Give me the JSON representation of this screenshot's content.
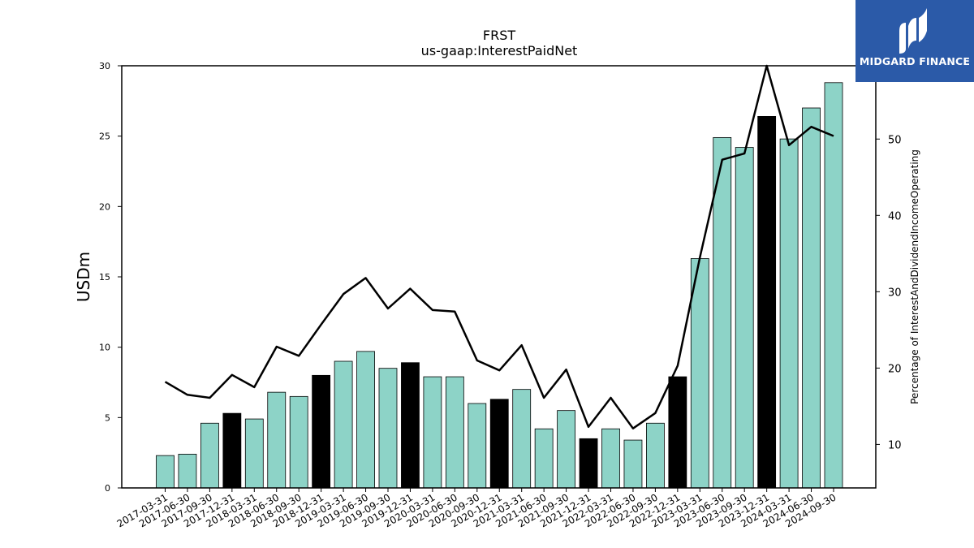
{
  "chart_data": {
    "type": "bar",
    "title": "FRST",
    "subtitle": "us-gaap:InterestPaidNet",
    "ylabel": "USDm",
    "y2label": "Percentage of InterestAndDividendIncomeOperating",
    "ylim": [
      0,
      30
    ],
    "y2lim": [
      4.3,
      59.6
    ],
    "yticks": [
      0,
      5,
      10,
      15,
      20,
      25,
      30
    ],
    "y2ticks": [
      10,
      20,
      30,
      40,
      50
    ],
    "categories": [
      "2017-03-31",
      "2017-06-30",
      "2017-09-30",
      "2017-12-31",
      "2018-03-31",
      "2018-06-30",
      "2018-09-30",
      "2018-12-31",
      "2019-03-31",
      "2019-06-30",
      "2019-09-30",
      "2019-12-31",
      "2020-03-31",
      "2020-06-30",
      "2020-09-30",
      "2020-12-31",
      "2021-03-31",
      "2021-06-30",
      "2021-09-30",
      "2021-12-31",
      "2022-03-31",
      "2022-06-30",
      "2022-09-30",
      "2022-12-31",
      "2023-03-31",
      "2023-06-30",
      "2023-09-30",
      "2023-12-31",
      "2024-03-31",
      "2024-06-30",
      "2024-09-30"
    ],
    "series": [
      {
        "axis": "left",
        "kind": "bar",
        "values": [
          2.3,
          2.4,
          4.6,
          5.3,
          4.9,
          6.8,
          6.5,
          8.0,
          9.0,
          9.7,
          8.5,
          8.9,
          7.9,
          7.9,
          6.0,
          6.3,
          7.0,
          4.2,
          5.5,
          3.5,
          4.2,
          3.4,
          4.6,
          7.9,
          16.3,
          24.9,
          24.2,
          26.4,
          24.8,
          27.0,
          28.8
        ],
        "highlight": [
          false,
          false,
          false,
          true,
          false,
          false,
          false,
          true,
          false,
          false,
          false,
          true,
          false,
          false,
          false,
          true,
          false,
          false,
          false,
          true,
          false,
          false,
          false,
          true,
          false,
          false,
          false,
          true,
          false,
          false,
          false
        ]
      },
      {
        "axis": "right",
        "kind": "line",
        "values": [
          18.2,
          16.5,
          16.1,
          19.1,
          17.5,
          22.8,
          21.6,
          25.7,
          29.7,
          31.8,
          27.8,
          30.4,
          27.6,
          27.4,
          21.0,
          19.7,
          23.0,
          16.1,
          19.8,
          12.3,
          16.1,
          12.1,
          14.1,
          20.3,
          34.5,
          47.3,
          48.1,
          59.6,
          49.2,
          51.6,
          50.4
        ]
      }
    ],
    "colors": {
      "bar": "#8dd3c7",
      "highlight": "#000000",
      "line": "#000000"
    },
    "grid": false,
    "legend": "none"
  },
  "logo": {
    "text": "MIDGARD FINANCE"
  }
}
